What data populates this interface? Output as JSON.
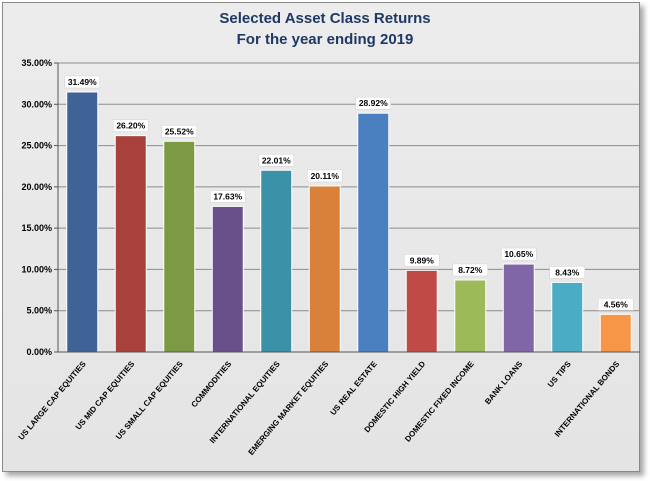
{
  "chart_data": {
    "type": "bar",
    "title": "Selected Asset Class Returns",
    "subtitle": "For the year ending 2019",
    "categories": [
      "US LARGE CAP EQUITIES",
      "US MID CAP EQUITIES",
      "US SMALL CAP EQUITIES",
      "COMMODITIES",
      "INTERNATIONAL EQUITIES",
      "EMERGING MARKET EQUITIES",
      "US REAL ESTATE",
      "DOMESTIC HIGH YIELD",
      "DOMESTIC FIXED INCOME",
      "BANK LOANS",
      "US TIPS",
      "INTERNATIONAL BONDS"
    ],
    "values": [
      31.49,
      26.2,
      25.52,
      17.63,
      22.01,
      20.11,
      28.92,
      9.89,
      8.72,
      10.65,
      8.43,
      4.56
    ],
    "data_labels": [
      "31.49%",
      "26.20%",
      "25.52%",
      "17.63%",
      "22.01%",
      "20.11%",
      "28.92%",
      "9.89%",
      "8.72%",
      "10.65%",
      "8.43%",
      "4.56%"
    ],
    "bar_colors": [
      "#3f6396",
      "#a8403c",
      "#7c9a44",
      "#69508a",
      "#3b92a8",
      "#d9813a",
      "#4a7fc0",
      "#c04a46",
      "#9dba58",
      "#8066a6",
      "#4bacc6",
      "#f79646"
    ],
    "ylim": [
      0,
      35
    ],
    "yticks": [
      "0.00%",
      "5.00%",
      "10.00%",
      "15.00%",
      "20.00%",
      "25.00%",
      "30.00%",
      "35.00%"
    ],
    "ytick_values": [
      0,
      5,
      10,
      15,
      20,
      25,
      30,
      35
    ],
    "xlabel": "",
    "ylabel": "",
    "grid": true,
    "legend": "none"
  }
}
